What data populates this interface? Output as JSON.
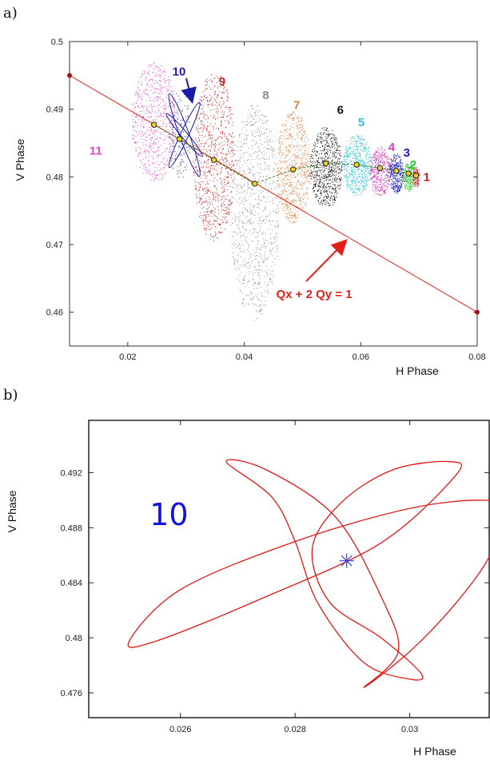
{
  "panel_a_label": "a)",
  "panel_b_label": "b)",
  "chart_data": [
    {
      "type": "scatter",
      "xlabel": "H Phase",
      "ylabel": "V Phase",
      "xlim": [
        0.01,
        0.08
      ],
      "ylim": [
        0.455,
        0.5
      ],
      "xticks": [
        "0.02",
        "0.04",
        "0.06",
        "0.08"
      ],
      "yticks": [
        "0.46",
        "0.47",
        "0.48",
        "0.49",
        "0.5"
      ],
      "resonance_line": {
        "label": "Qx + 2 Qy = 1",
        "color": "#e0201a",
        "points": [
          [
            0.01,
            0.495
          ],
          [
            0.08,
            0.46
          ]
        ]
      },
      "families": [
        {
          "name": "11",
          "color": "#e048c8",
          "center": [
            0.0245,
            0.4877
          ],
          "label_at": [
            0.0145,
            0.4833
          ]
        },
        {
          "name": "10",
          "color": "#1a1aa8",
          "center": [
            0.0289,
            0.4856
          ],
          "label_at": [
            0.0288,
            0.495
          ]
        },
        {
          "name": "9",
          "color": "#cc2222",
          "center": [
            0.0348,
            0.4825
          ],
          "label_at": [
            0.0362,
            0.4935
          ]
        },
        {
          "name": "8",
          "color": "#8c8c8c",
          "center": [
            0.0418,
            0.479
          ],
          "label_at": [
            0.0437,
            0.4915
          ]
        },
        {
          "name": "7",
          "color": "#d97a3a",
          "center": [
            0.0484,
            0.4811
          ],
          "label_at": [
            0.049,
            0.49
          ]
        },
        {
          "name": "6",
          "color": "#111111",
          "center": [
            0.054,
            0.482
          ],
          "label_at": [
            0.0565,
            0.4893
          ]
        },
        {
          "name": "5",
          "color": "#2fc4d4",
          "center": [
            0.0593,
            0.4818
          ],
          "label_at": [
            0.0601,
            0.4875
          ]
        },
        {
          "name": "4",
          "color": "#d43fb8",
          "center": [
            0.0633,
            0.4813
          ],
          "label_at": [
            0.0653,
            0.4838
          ]
        },
        {
          "name": "3",
          "color": "#1a1ac0",
          "center": [
            0.0661,
            0.4809
          ],
          "label_at": [
            0.0679,
            0.483
          ]
        },
        {
          "name": "2",
          "color": "#2ec02e",
          "center": [
            0.0682,
            0.4805
          ],
          "label_at": [
            0.069,
            0.4812
          ]
        },
        {
          "name": "1",
          "color": "#e01818",
          "center": [
            0.0695,
            0.4802
          ],
          "label_at": [
            0.0713,
            0.4794
          ]
        }
      ],
      "annotation": "Qx + 2 Qy = 1"
    },
    {
      "type": "line",
      "xlabel": "H Phase",
      "ylabel": "V Phase",
      "xlim": [
        0.0244,
        0.0314
      ],
      "ylim": [
        0.4742,
        0.4958
      ],
      "xticks": [
        "0.026",
        "0.028",
        "0.03"
      ],
      "yticks": [
        "0.476",
        "0.48",
        "0.484",
        "0.488",
        "0.492"
      ],
      "annotation": "10",
      "curve_color": "#e01818",
      "star_color": "#3a3ae0",
      "star": [
        0.0289,
        0.4856
      ],
      "curve": [
        [
          0.0292,
          0.4764
        ],
        [
          0.03,
          0.479
        ],
        [
          0.0308,
          0.4825
        ],
        [
          0.0314,
          0.486
        ],
        [
          0.0316,
          0.4892
        ],
        [
          0.0313,
          0.49
        ],
        [
          0.03,
          0.4894
        ],
        [
          0.028,
          0.487
        ],
        [
          0.026,
          0.4835
        ],
        [
          0.0251,
          0.4797
        ],
        [
          0.0256,
          0.4798
        ],
        [
          0.0275,
          0.483
        ],
        [
          0.0295,
          0.4869
        ],
        [
          0.0308,
          0.4918
        ],
        [
          0.0307,
          0.4928
        ],
        [
          0.0297,
          0.4922
        ],
        [
          0.0288,
          0.4898
        ],
        [
          0.0283,
          0.4865
        ],
        [
          0.0286,
          0.4826
        ],
        [
          0.0295,
          0.48
        ],
        [
          0.0302,
          0.4774
        ],
        [
          0.03,
          0.477
        ],
        [
          0.0292,
          0.4782
        ],
        [
          0.0284,
          0.4825
        ],
        [
          0.028,
          0.487
        ],
        [
          0.0276,
          0.4902
        ],
        [
          0.0268,
          0.4928
        ],
        [
          0.0275,
          0.4922
        ],
        [
          0.0287,
          0.4888
        ],
        [
          0.0295,
          0.483
        ],
        [
          0.0298,
          0.479
        ],
        [
          0.0292,
          0.4764
        ]
      ]
    }
  ]
}
